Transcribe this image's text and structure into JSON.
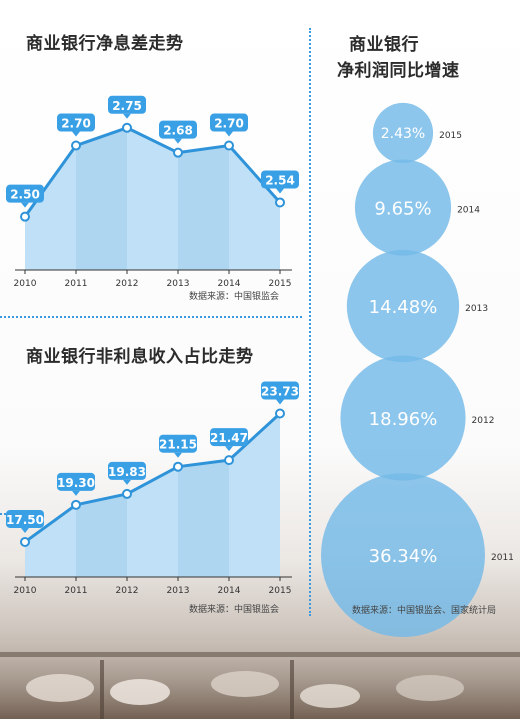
{
  "charts": [
    {
      "type": "line",
      "title": "商业银行净息差走势",
      "x": [
        "2010",
        "2011",
        "2012",
        "2013",
        "2014",
        "2015"
      ],
      "values": [
        2.5,
        2.7,
        2.75,
        2.68,
        2.7,
        2.54
      ],
      "labels": [
        "2.50",
        "2.70",
        "2.75",
        "2.68",
        "2.70",
        "2.54"
      ],
      "source": "数据来源：中国银监会"
    },
    {
      "type": "line",
      "title": "商业银行非利息收入占比走势",
      "x": [
        "2010",
        "2011",
        "2012",
        "2013",
        "2014",
        "2015"
      ],
      "values": [
        17.5,
        19.3,
        19.83,
        21.15,
        21.47,
        23.73
      ],
      "labels": [
        "17.50",
        "19.30",
        "19.83",
        "21.15",
        "21.47",
        "23.73"
      ],
      "source": "数据来源：中国银监会"
    }
  ],
  "bubbles": {
    "type": "bubble",
    "title_line1": "商业银行",
    "title_line2": "净利润同比增速",
    "items": [
      {
        "year": "2015",
        "value": 2.43,
        "label": "2.43%"
      },
      {
        "year": "2014",
        "value": 9.65,
        "label": "9.65%"
      },
      {
        "year": "2013",
        "value": 14.48,
        "label": "14.48%"
      },
      {
        "year": "2012",
        "value": 18.96,
        "label": "18.96%"
      },
      {
        "year": "2011",
        "value": 36.34,
        "label": "36.34%"
      }
    ],
    "source": "数据来源：中国银监会、国家统计局"
  },
  "colors": {
    "line": "#2f93d9",
    "area": "#bfe0f6",
    "area_alt": "#aed6f1",
    "label_bg": "#3aa0e6",
    "bubble": "#74b9e8"
  }
}
